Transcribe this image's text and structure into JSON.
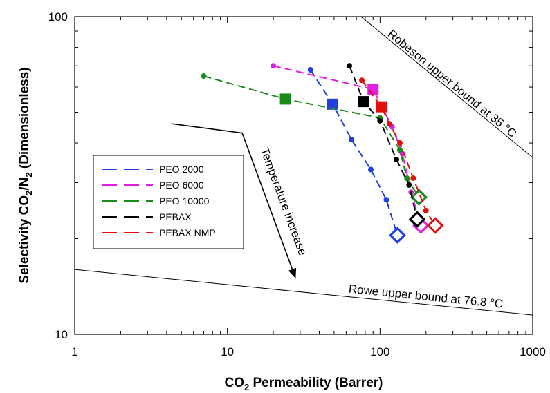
{
  "chart_data": {
    "type": "scatter",
    "xscale": "log",
    "yscale": "log",
    "xlim": [
      1,
      1000
    ],
    "ylim": [
      10,
      100
    ],
    "x_ticks": [
      "1",
      "10",
      "100",
      "1000"
    ],
    "y_ticks": [
      "10",
      "100"
    ],
    "xlabel": {
      "main": "CO",
      "sub": "2",
      "rest": " Permeability (Barrer)"
    },
    "ylabel": {
      "a": "Selectivity CO",
      "b": "2",
      "c": "/N",
      "d": "2",
      "e": " (Dimensionless)"
    },
    "legend_position": "middle-left",
    "series": [
      {
        "name": "PEO 2000",
        "color": "#1f3fe0",
        "dash": "long",
        "x": [
          35,
          49,
          65,
          87,
          110,
          130
        ],
        "y": [
          68,
          53,
          41,
          33,
          26.5,
          20.5
        ],
        "emphasis": [
          {
            "x": 49,
            "y": 53,
            "marker": "filled-square"
          },
          {
            "x": 130,
            "y": 20.5,
            "marker": "open-diamond"
          }
        ]
      },
      {
        "name": "PEO 6000",
        "color": "#e020e0",
        "dash": "long",
        "x": [
          20,
          90,
          120,
          140,
          160,
          185
        ],
        "y": [
          70,
          59,
          45,
          37,
          28,
          22
        ],
        "emphasis": [
          {
            "x": 90,
            "y": 59,
            "marker": "filled-square"
          },
          {
            "x": 185,
            "y": 22,
            "marker": "open-diamond"
          }
        ]
      },
      {
        "name": "PEO 10000",
        "color": "#1a8a1a",
        "dash": "long",
        "x": [
          7,
          24,
          100,
          135,
          150,
          180
        ],
        "y": [
          65,
          55,
          48,
          38,
          31,
          27
        ],
        "emphasis": [
          {
            "x": 24,
            "y": 55,
            "marker": "filled-square"
          },
          {
            "x": 180,
            "y": 27,
            "marker": "open-diamond"
          }
        ]
      },
      {
        "name": "PEBAX",
        "color": "#000000",
        "dash": "long",
        "x": [
          63,
          78,
          100,
          128,
          155,
          175
        ],
        "y": [
          70,
          54,
          47,
          35.5,
          29.5,
          23
        ],
        "emphasis": [
          {
            "x": 78,
            "y": 54,
            "marker": "filled-square"
          },
          {
            "x": 175,
            "y": 23,
            "marker": "open-diamond"
          }
        ]
      },
      {
        "name": "PEBAX NMP",
        "color": "#e01010",
        "dash": "long",
        "x": [
          76,
          102,
          115,
          135,
          165,
          200,
          230
        ],
        "y": [
          63,
          52,
          46,
          40,
          31,
          24.5,
          22
        ],
        "emphasis": [
          {
            "x": 102,
            "y": 52,
            "marker": "filled-square"
          },
          {
            "x": 230,
            "y": 22,
            "marker": "open-diamond"
          }
        ]
      }
    ],
    "bounds": [
      {
        "label": "Robeson upper bound at 35 °C",
        "x": [
          75,
          1000
        ],
        "y": [
          100,
          36
        ]
      },
      {
        "label": "Rowe upper bound at 76.8 °C",
        "x": [
          1,
          1000
        ],
        "y": [
          16,
          11.5
        ]
      }
    ],
    "annotation": {
      "label": "Temperature increase",
      "arrow_x": [
        4.3,
        12.5,
        28
      ],
      "arrow_y": [
        46,
        43,
        15
      ]
    }
  }
}
